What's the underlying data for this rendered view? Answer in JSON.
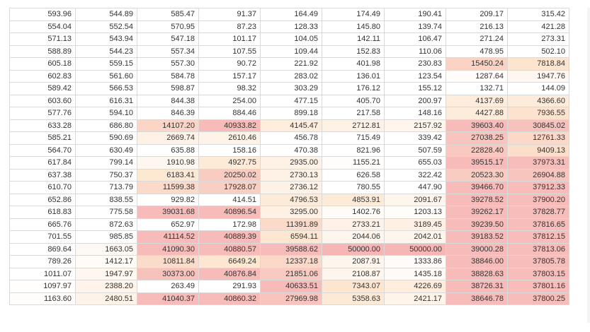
{
  "table": {
    "rows": [
      [
        "593.96",
        "544.89",
        "585.47",
        "91.37",
        "164.49",
        "174.49",
        "190.41",
        "209.17",
        "315.42"
      ],
      [
        "554.04",
        "552.54",
        "570.95",
        "87.23",
        "128.33",
        "145.80",
        "139.74",
        "216.13",
        "421.28"
      ],
      [
        "571.13",
        "543.94",
        "547.18",
        "101.17",
        "104.05",
        "142.11",
        "106.47",
        "271.24",
        "273.31"
      ],
      [
        "588.89",
        "544.23",
        "557.34",
        "107.55",
        "109.44",
        "152.83",
        "110.06",
        "478.95",
        "502.10"
      ],
      [
        "605.18",
        "559.15",
        "557.30",
        "90.72",
        "221.92",
        "401.98",
        "230.83",
        "15450.24",
        "7818.84"
      ],
      [
        "602.83",
        "561.60",
        "584.78",
        "157.17",
        "283.02",
        "136.01",
        "123.54",
        "1287.64",
        "1947.76"
      ],
      [
        "589.42",
        "566.53",
        "598.87",
        "98.32",
        "303.29",
        "176.12",
        "155.12",
        "132.71",
        "144.09"
      ],
      [
        "603.60",
        "616.31",
        "844.38",
        "254.00",
        "477.15",
        "405.70",
        "200.97",
        "4137.69",
        "4366.60"
      ],
      [
        "577.76",
        "594.10",
        "846.39",
        "884.46",
        "899.18",
        "217.58",
        "148.16",
        "4427.88",
        "7936.55"
      ],
      [
        "633.28",
        "686.80",
        "14107.20",
        "40933.82",
        "4145.47",
        "2712.81",
        "2157.92",
        "39603.40",
        "30845.02"
      ],
      [
        "585.21",
        "590.69",
        "2669.74",
        "2610.46",
        "456.78",
        "715.49",
        "339.42",
        "27038.25",
        "12761.33"
      ],
      [
        "564.70",
        "630.49",
        "635.88",
        "158.16",
        "470.38",
        "821.96",
        "507.59",
        "22828.40",
        "9409.13"
      ],
      [
        "617.84",
        "799.14",
        "1910.98",
        "4927.75",
        "2935.00",
        "1155.21",
        "655.03",
        "39515.17",
        "37973.31"
      ],
      [
        "637.38",
        "750.37",
        "6183.41",
        "20250.02",
        "2730.13",
        "626.58",
        "322.42",
        "20523.30",
        "26904.88"
      ],
      [
        "610.70",
        "713.79",
        "11599.38",
        "17928.07",
        "2736.12",
        "780.55",
        "447.90",
        "39466.70",
        "37912.33"
      ],
      [
        "652.86",
        "838.55",
        "929.82",
        "414.51",
        "4796.53",
        "4853.91",
        "2091.67",
        "39278.52",
        "37900.20"
      ],
      [
        "618.83",
        "775.58",
        "39031.68",
        "40896.54",
        "3295.00",
        "1402.76",
        "1203.13",
        "39262.17",
        "37828.77"
      ],
      [
        "665.76",
        "872.63",
        "652.97",
        "172.98",
        "11391.89",
        "2733.21",
        "3189.45",
        "39239.50",
        "37816.65"
      ],
      [
        "701.55",
        "985.85",
        "41114.52",
        "40889.39",
        "6594.11",
        "2044.06",
        "2042.01",
        "39183.52",
        "37812.15"
      ],
      [
        "869.64",
        "1663.05",
        "41090.30",
        "40880.57",
        "39588.62",
        "50000.00",
        "50000.00",
        "39000.28",
        "37813.06"
      ],
      [
        "789.26",
        "1412.17",
        "10811.84",
        "6649.24",
        "12337.18",
        "2087.91",
        "1333.86",
        "38846.00",
        "37805.78"
      ],
      [
        "1011.07",
        "1947.97",
        "30373.00",
        "40876.84",
        "21851.06",
        "2108.87",
        "1435.18",
        "38828.63",
        "37803.15"
      ],
      [
        "1097.97",
        "2388.20",
        "263.49",
        "291.93",
        "40633.51",
        "7343.07",
        "4226.69",
        "38726.31",
        "37801.16"
      ],
      [
        "1163.60",
        "2480.51",
        "41040.37",
        "40860.32",
        "27969.98",
        "5358.63",
        "2421.17",
        "38646.78",
        "37800.25"
      ]
    ]
  },
  "heatmap": {
    "low_color": "#ffffff",
    "mid_color": "#fde6cf",
    "high_color": "#f6b6b6",
    "max_value": 50000
  }
}
